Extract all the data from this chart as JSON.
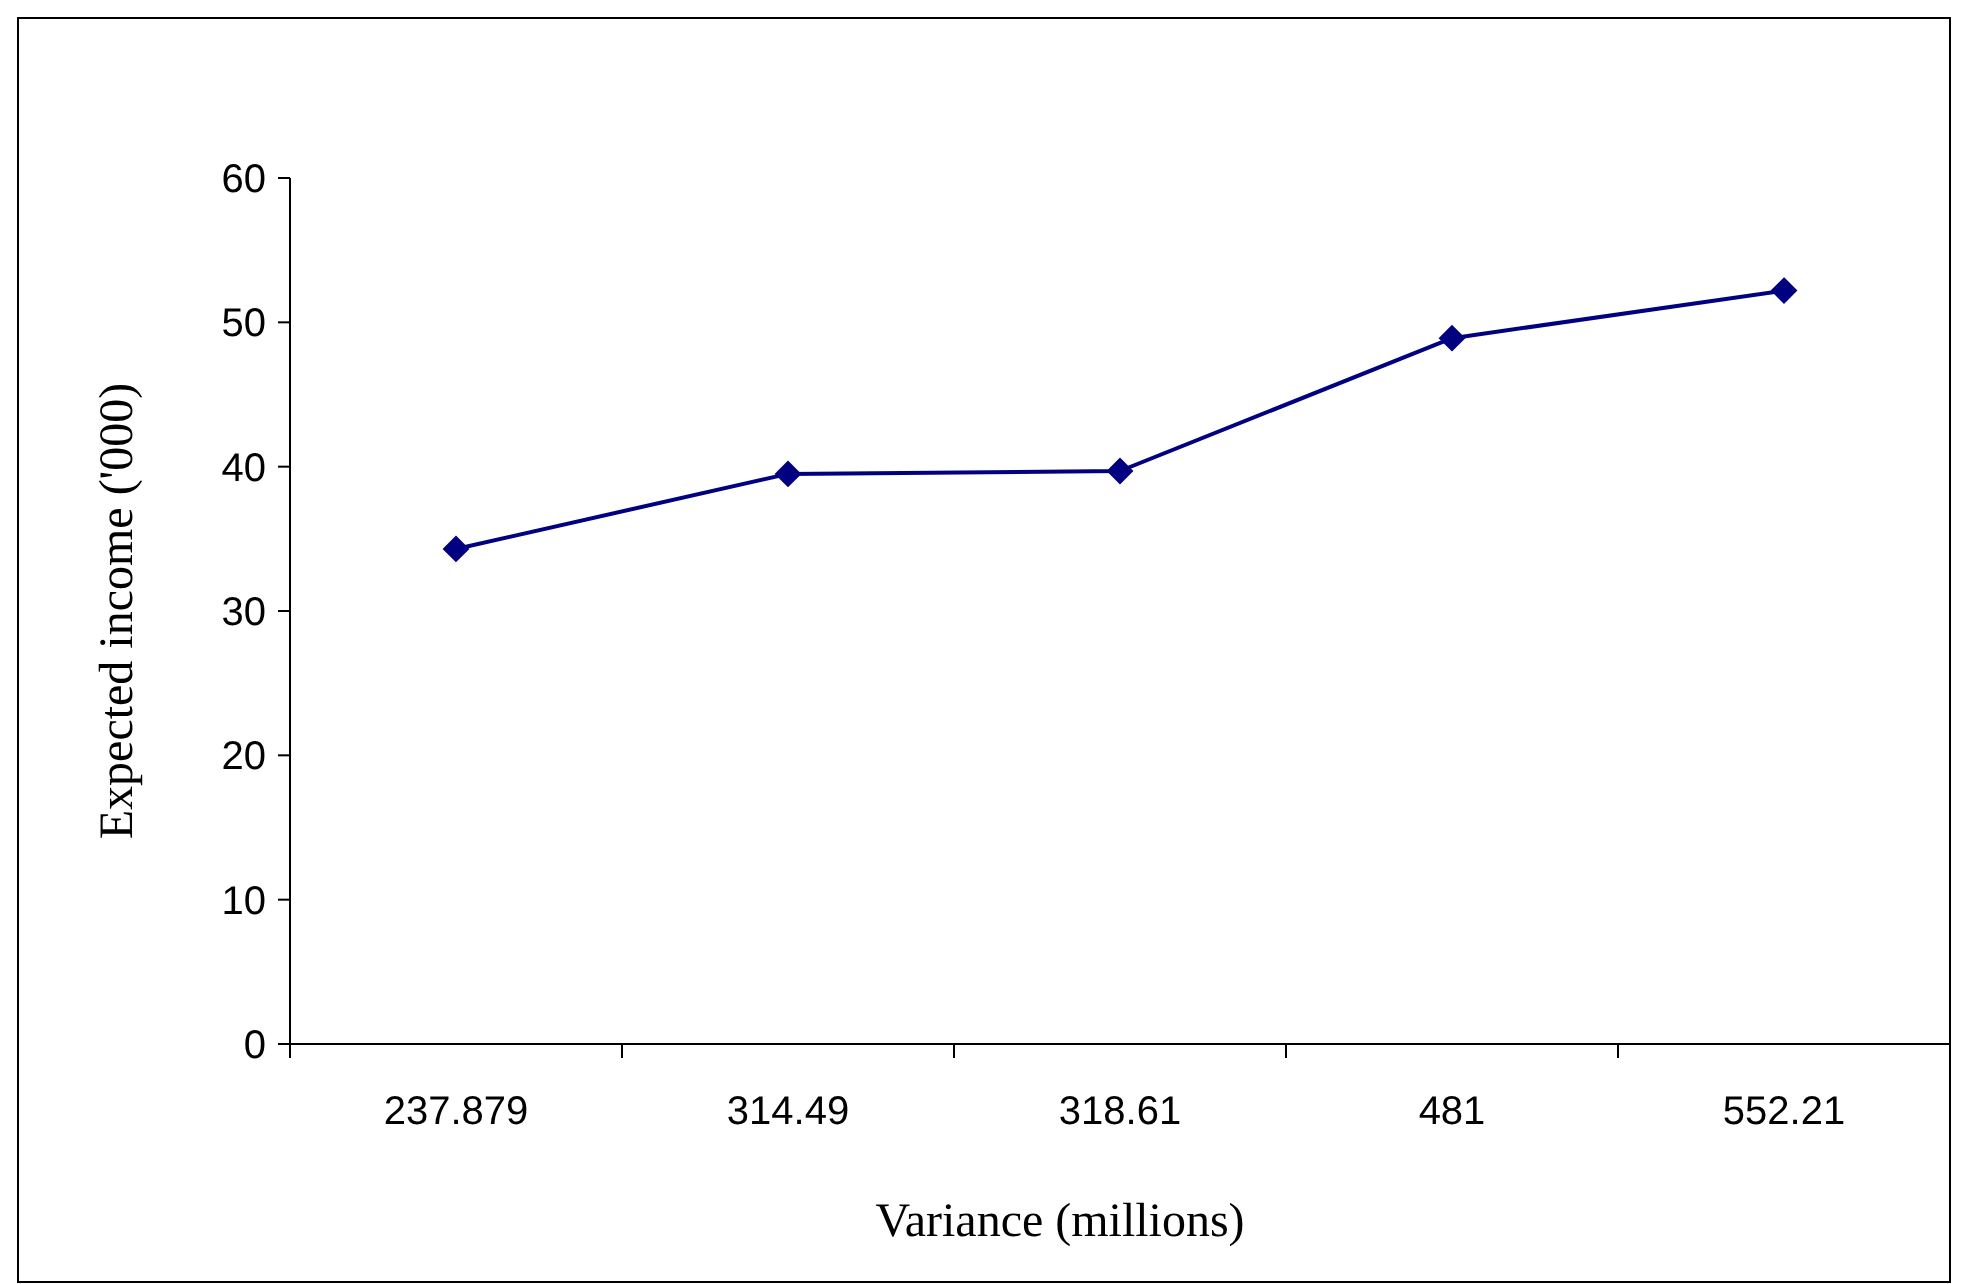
{
  "chart_data": {
    "type": "line",
    "xlabel": "Variance (millions)",
    "ylabel": "Expected income ('000)",
    "categories": [
      "237.879",
      "314.49",
      "318.61",
      "481",
      "552.21"
    ],
    "series": [
      {
        "color": "#000080",
        "values": [
          34.3,
          39.5,
          39.7,
          48.9,
          52.2
        ]
      }
    ],
    "ylim": [
      0,
      60
    ],
    "yticks": [
      0,
      10,
      20,
      30,
      40,
      50,
      60
    ],
    "marker": "diamond",
    "line_style": "solid",
    "grid": false
  }
}
